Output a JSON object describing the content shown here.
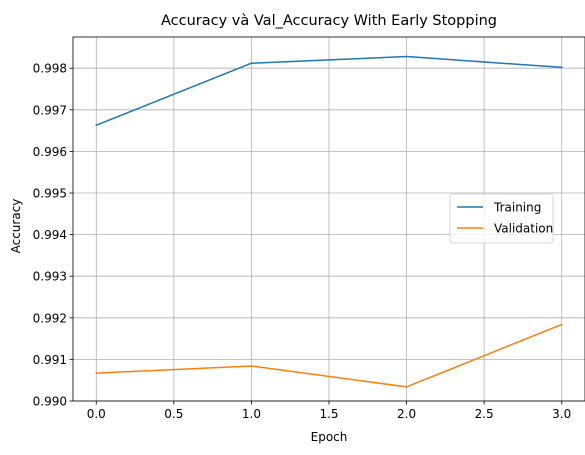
{
  "chart_data": {
    "type": "line",
    "title": "Accuracy và Val_Accuracy With Early Stopping",
    "xlabel": "Epoch",
    "ylabel": "Accuracy",
    "xlim": [
      -0.15,
      3.15
    ],
    "ylim": [
      0.99,
      0.99875
    ],
    "xticks": [
      0.0,
      0.5,
      1.0,
      1.5,
      2.0,
      2.5,
      3.0
    ],
    "xtick_labels": [
      "0.0",
      "0.5",
      "1.0",
      "1.5",
      "2.0",
      "2.5",
      "3.0"
    ],
    "yticks": [
      0.99,
      0.991,
      0.992,
      0.993,
      0.994,
      0.995,
      0.996,
      0.997,
      0.998
    ],
    "ytick_labels": [
      "0.990",
      "0.991",
      "0.992",
      "0.993",
      "0.994",
      "0.995",
      "0.996",
      "0.997",
      "0.998"
    ],
    "grid": true,
    "legend_position": "center-right",
    "x": [
      0,
      1,
      2,
      3
    ],
    "series": [
      {
        "name": "Training",
        "color": "#1f77b4",
        "values": [
          0.99663,
          0.99812,
          0.99828,
          0.99802
        ]
      },
      {
        "name": "Validation",
        "color": "#ff7f0e",
        "values": [
          0.99067,
          0.99084,
          0.99034,
          0.99184
        ]
      }
    ]
  }
}
